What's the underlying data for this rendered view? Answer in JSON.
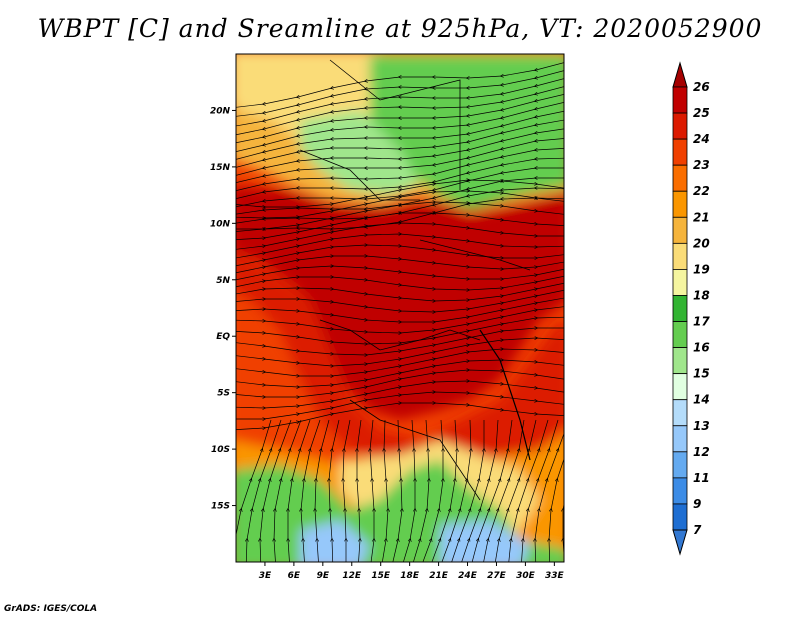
{
  "title": "WBPT [C] and Sreamline at 925hPa, VT: 2020052900",
  "credit": "GrADS: IGES/COLA",
  "map": {
    "lon_range": [
      0,
      34
    ],
    "lat_range": [
      -20,
      25
    ],
    "x_ticks": [
      {
        "value": 3,
        "label": "3E"
      },
      {
        "value": 6,
        "label": "6E"
      },
      {
        "value": 9,
        "label": "9E"
      },
      {
        "value": 12,
        "label": "12E"
      },
      {
        "value": 15,
        "label": "15E"
      },
      {
        "value": 18,
        "label": "18E"
      },
      {
        "value": 21,
        "label": "21E"
      },
      {
        "value": 24,
        "label": "24E"
      },
      {
        "value": 27,
        "label": "27E"
      },
      {
        "value": 30,
        "label": "30E"
      },
      {
        "value": 33,
        "label": "33E"
      }
    ],
    "y_ticks": [
      {
        "value": 20,
        "label": "20N"
      },
      {
        "value": 15,
        "label": "15N"
      },
      {
        "value": 10,
        "label": "10N"
      },
      {
        "value": 5,
        "label": "5N"
      },
      {
        "value": 0,
        "label": "EQ"
      },
      {
        "value": -5,
        "label": "5S"
      },
      {
        "value": -10,
        "label": "10S"
      },
      {
        "value": -15,
        "label": "15S"
      }
    ]
  },
  "colorbar": {
    "levels": [
      {
        "label": "26",
        "color": "#a50000"
      },
      {
        "label": "25",
        "color": "#c00000"
      },
      {
        "label": "24",
        "color": "#dc1a00"
      },
      {
        "label": "23",
        "color": "#f04000"
      },
      {
        "label": "22",
        "color": "#fa6e00"
      },
      {
        "label": "21",
        "color": "#fa9600"
      },
      {
        "label": "20",
        "color": "#f5b43c"
      },
      {
        "label": "19",
        "color": "#fadc78"
      },
      {
        "label": "18",
        "color": "#f5f5a0"
      },
      {
        "label": "17",
        "color": "#32b432"
      },
      {
        "label": "16",
        "color": "#64cd50"
      },
      {
        "label": "15",
        "color": "#a0e68c"
      },
      {
        "label": "14",
        "color": "#e1ffe1"
      },
      {
        "label": "13",
        "color": "#b4dcfa"
      },
      {
        "label": "12",
        "color": "#96c8fa"
      },
      {
        "label": "11",
        "color": "#64aaf0"
      },
      {
        "label": "9",
        "color": "#3c8ce6"
      },
      {
        "label": "7",
        "color": "#1e6ed2"
      }
    ],
    "bottom_color": "#3278d2",
    "top_color": "#a50000"
  },
  "regions": [
    {
      "name": "north-dry",
      "color": "#f5b43c"
    },
    {
      "name": "north-pale",
      "color": "#fadc78"
    },
    {
      "name": "sahel-green",
      "color": "#64cd50"
    },
    {
      "name": "sahel-light",
      "color": "#a0e68c"
    },
    {
      "name": "equatorial-hot",
      "color": "#c00000"
    },
    {
      "name": "equatorial-red",
      "color": "#dc1a00"
    },
    {
      "name": "atlantic-orange",
      "color": "#f04000"
    },
    {
      "name": "south-orange",
      "color": "#fa9600"
    },
    {
      "name": "south-pale",
      "color": "#fadc78"
    },
    {
      "name": "south-green",
      "color": "#64cd50"
    },
    {
      "name": "south-cool",
      "color": "#96c8fa"
    }
  ]
}
